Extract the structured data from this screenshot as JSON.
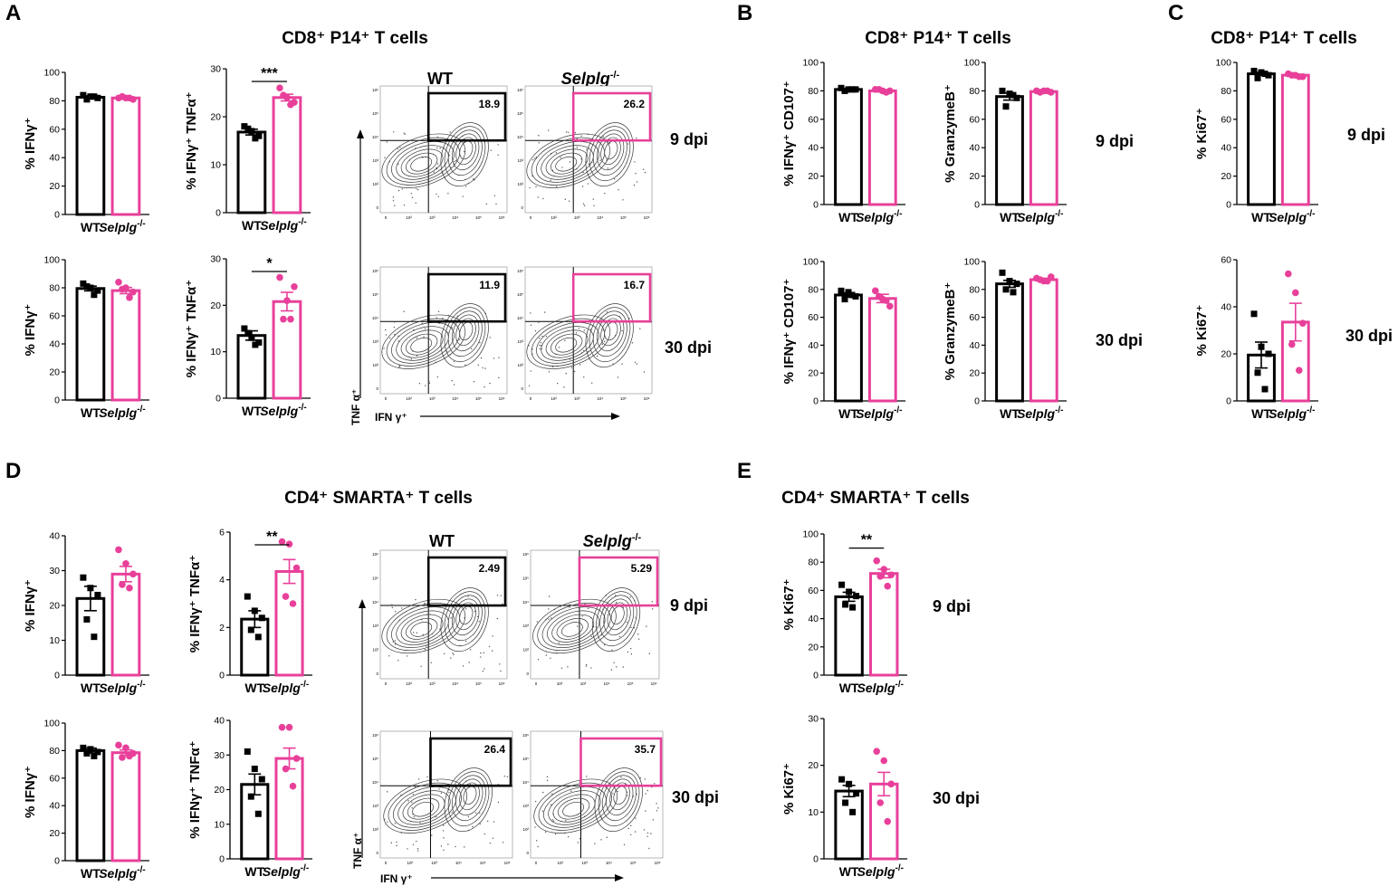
{
  "colors": {
    "wt": "#000000",
    "ko": "#e8409a",
    "contour": "#3a3a3a"
  },
  "panel_labels": {
    "a": "A",
    "b": "B",
    "c": "C",
    "d": "D",
    "e": "E"
  },
  "panel_titles": {
    "a": "CD8⁺ P14⁺ T cells",
    "b": "CD8⁺ P14⁺ T cells",
    "c": "CD8⁺ P14⁺ T cells",
    "d": "CD4⁺ SMARTA⁺ T cells",
    "e": "CD4⁺ SMARTA⁺ T cells"
  },
  "timepoints": {
    "day9": "9 dpi",
    "day30": "30 dpi"
  },
  "groups": {
    "wt": "WT",
    "ko": "Selplg",
    "ko_sup": "-/-"
  },
  "flow_headers": {
    "wt": "WT",
    "ko": "Selplg",
    "ko_sup": "-/-"
  },
  "flow_axes": {
    "x": "IFN γ⁺",
    "y": "TNF α⁺"
  },
  "flow_tick_labels": [
    "0",
    "10²",
    "10³",
    "10⁴",
    "10⁵",
    "10⁶"
  ],
  "chart_data": [
    {
      "id": "A1",
      "type": "bar",
      "panel": "A",
      "timepoint": "9 dpi",
      "ylabel": "% IFNγ⁺",
      "categories": [
        "WT",
        "Selplg-/-"
      ],
      "ylim": [
        0,
        100
      ],
      "yticks": [
        0,
        20,
        40,
        60,
        80,
        100
      ],
      "values": [
        82.5,
        82
      ],
      "sem": [
        1,
        0.7
      ],
      "points": [
        [
          84,
          83,
          82,
          81,
          83
        ],
        [
          82,
          82,
          81,
          83,
          82
        ]
      ],
      "significance": ""
    },
    {
      "id": "A2",
      "type": "bar",
      "panel": "A",
      "timepoint": "9 dpi",
      "ylabel": "% IFNγ⁺ TNFα⁺",
      "categories": [
        "WT",
        "Selplg-/-"
      ],
      "ylim": [
        0,
        30
      ],
      "yticks": [
        0,
        10,
        20,
        30
      ],
      "values": [
        16.8,
        24
      ],
      "sem": [
        0.6,
        0.7
      ],
      "points": [
        [
          18,
          17,
          16,
          17.5,
          15.5
        ],
        [
          26,
          24,
          23,
          24.5,
          22.5
        ]
      ],
      "significance": "***"
    },
    {
      "id": "A3",
      "type": "bar",
      "panel": "A",
      "timepoint": "30 dpi",
      "ylabel": "% IFNγ⁺",
      "categories": [
        "WT",
        "Selplg-/-"
      ],
      "ylim": [
        0,
        100
      ],
      "yticks": [
        0,
        20,
        40,
        60,
        80,
        100
      ],
      "values": [
        79.5,
        78
      ],
      "sem": [
        1.7,
        2.2
      ],
      "points": [
        [
          83,
          80,
          78,
          81,
          75
        ],
        [
          84,
          80,
          77,
          79,
          73
        ]
      ],
      "significance": ""
    },
    {
      "id": "A4",
      "type": "bar",
      "panel": "A",
      "timepoint": "30 dpi",
      "ylabel": "% IFNγ⁺ TNFα⁺",
      "categories": [
        "WT",
        "Selplg-/-"
      ],
      "ylim": [
        0,
        30
      ],
      "yticks": [
        0,
        10,
        20,
        30
      ],
      "values": [
        13.5,
        20.8
      ],
      "sem": [
        1,
        2
      ],
      "points": [
        [
          15,
          13,
          12,
          14,
          11.5
        ],
        [
          26,
          21,
          24,
          17,
          17
        ]
      ],
      "significance": "*"
    },
    {
      "id": "B1",
      "type": "bar",
      "panel": "B",
      "timepoint": "9 dpi",
      "ylabel": "% IFNγ⁺ CD107⁺",
      "categories": [
        "WT",
        "Selplg-/-"
      ],
      "ylim": [
        0,
        100
      ],
      "yticks": [
        0,
        20,
        40,
        60,
        80,
        100
      ],
      "values": [
        81,
        80
      ],
      "sem": [
        0.5,
        0.5
      ],
      "points": [
        [
          82,
          81,
          81,
          80,
          81
        ],
        [
          81,
          80,
          80,
          81,
          79
        ]
      ],
      "significance": ""
    },
    {
      "id": "B2",
      "type": "bar",
      "panel": "B",
      "timepoint": "9 dpi",
      "ylabel": "% GranzymeB⁺",
      "categories": [
        "WT",
        "Selplg-/-"
      ],
      "ylim": [
        0,
        100
      ],
      "yticks": [
        0,
        20,
        40,
        60,
        80,
        100
      ],
      "values": [
        76,
        79.5
      ],
      "sem": [
        2.5,
        0.5
      ],
      "points": [
        [
          80,
          78,
          75,
          69,
          77
        ],
        [
          80,
          80,
          79,
          79,
          80
        ]
      ],
      "significance": ""
    },
    {
      "id": "B3",
      "type": "bar",
      "panel": "B",
      "timepoint": "30 dpi",
      "ylabel": "% IFNγ⁺ CD107⁺",
      "categories": [
        "WT",
        "Selplg-/-"
      ],
      "ylim": [
        0,
        100
      ],
      "yticks": [
        0,
        20,
        40,
        60,
        80,
        100
      ],
      "values": [
        76,
        73.5
      ],
      "sem": [
        1.5,
        3
      ],
      "points": [
        [
          79,
          78,
          75,
          73,
          76
        ],
        [
          79,
          73,
          68,
          75,
          72
        ]
      ],
      "significance": ""
    },
    {
      "id": "B4",
      "type": "bar",
      "panel": "B",
      "timepoint": "30 dpi",
      "ylabel": "% GranzymeB⁺",
      "categories": [
        "WT",
        "Selplg-/-"
      ],
      "ylim": [
        0,
        100
      ],
      "yticks": [
        0,
        20,
        40,
        60,
        80,
        100
      ],
      "values": [
        84,
        87
      ],
      "sem": [
        2.5,
        1
      ],
      "points": [
        [
          92,
          86,
          84,
          80,
          78
        ],
        [
          88,
          86,
          89,
          87,
          86
        ]
      ],
      "significance": ""
    },
    {
      "id": "C1",
      "type": "bar",
      "panel": "C",
      "timepoint": "9 dpi",
      "ylabel": "% Ki67⁺",
      "categories": [
        "WT",
        "Selplg-/-"
      ],
      "ylim": [
        0,
        100
      ],
      "yticks": [
        0,
        20,
        40,
        60,
        80,
        100
      ],
      "values": [
        92,
        91
      ],
      "sem": [
        1,
        0.5
      ],
      "points": [
        [
          94,
          93,
          91,
          89,
          92
        ],
        [
          92,
          91,
          90,
          91,
          90
        ]
      ],
      "significance": ""
    },
    {
      "id": "C2",
      "type": "bar",
      "panel": "C",
      "timepoint": "30 dpi",
      "ylabel": "% Ki67⁺",
      "categories": [
        "WT",
        "Selplg-/-"
      ],
      "ylim": [
        0,
        60
      ],
      "yticks": [
        0,
        20,
        40,
        60
      ],
      "values": [
        19.5,
        33.5
      ],
      "sem": [
        5.5,
        8
      ],
      "points": [
        [
          37,
          23,
          20,
          12,
          5
        ],
        [
          54,
          46,
          33,
          24,
          13
        ]
      ],
      "significance": ""
    },
    {
      "id": "D1",
      "type": "bar",
      "panel": "D",
      "timepoint": "9 dpi",
      "ylabel": "% IFNγ⁺",
      "categories": [
        "WT",
        "Selplg-/-"
      ],
      "ylim": [
        0,
        40
      ],
      "yticks": [
        0,
        10,
        20,
        30,
        40
      ],
      "values": [
        22,
        29
      ],
      "sem": [
        3.5,
        2.2
      ],
      "points": [
        [
          28,
          25,
          23,
          16,
          11
        ],
        [
          36,
          32,
          29,
          26,
          25
        ]
      ],
      "significance": ""
    },
    {
      "id": "D2",
      "type": "bar",
      "panel": "D",
      "timepoint": "9 dpi",
      "ylabel": "% IFNγ⁺ TNFα⁺",
      "categories": [
        "WT",
        "Selplg-/-"
      ],
      "ylim": [
        0,
        6
      ],
      "yticks": [
        0,
        2,
        4,
        6
      ],
      "values": [
        2.35,
        4.35
      ],
      "sem": [
        0.35,
        0.5
      ],
      "points": [
        [
          3.3,
          2.7,
          2.4,
          1.9,
          1.6
        ],
        [
          5.6,
          5.5,
          4.5,
          3.3,
          3.0
        ]
      ],
      "significance": "**"
    },
    {
      "id": "D3",
      "type": "bar",
      "panel": "D",
      "timepoint": "30 dpi",
      "ylabel": "% IFNγ⁺",
      "categories": [
        "WT",
        "Selplg-/-"
      ],
      "ylim": [
        0,
        100
      ],
      "yticks": [
        0,
        20,
        40,
        60,
        80,
        100
      ],
      "values": [
        80,
        78.5
      ],
      "sem": [
        1.8,
        2
      ],
      "points": [
        [
          82,
          81,
          79,
          78,
          76
        ],
        [
          84,
          82,
          78,
          75,
          76
        ]
      ],
      "significance": ""
    },
    {
      "id": "D4",
      "type": "bar",
      "panel": "D",
      "timepoint": "30 dpi",
      "ylabel": "% IFNγ⁺ TNFα⁺",
      "categories": [
        "WT",
        "Selplg-/-"
      ],
      "ylim": [
        0,
        40
      ],
      "yticks": [
        0,
        10,
        20,
        30,
        40
      ],
      "values": [
        21.5,
        29
      ],
      "sem": [
        3,
        3
      ],
      "points": [
        [
          31,
          26,
          23,
          18,
          13
        ],
        [
          38,
          38,
          29,
          26,
          21
        ]
      ],
      "significance": ""
    },
    {
      "id": "E1",
      "type": "bar",
      "panel": "E",
      "timepoint": "9 dpi",
      "ylabel": "% Ki67⁺",
      "categories": [
        "WT",
        "Selplg-/-"
      ],
      "ylim": [
        0,
        100
      ],
      "yticks": [
        0,
        20,
        40,
        60,
        80,
        100
      ],
      "values": [
        55.5,
        72
      ],
      "sem": [
        3.2,
        3
      ],
      "points": [
        [
          64,
          59,
          56,
          50,
          48
        ],
        [
          81,
          75,
          71,
          70,
          63
        ]
      ],
      "significance": "**"
    },
    {
      "id": "E2",
      "type": "bar",
      "panel": "E",
      "timepoint": "30 dpi",
      "ylabel": "% Ki67⁺",
      "categories": [
        "WT",
        "Selplg-/-"
      ],
      "ylim": [
        0,
        30
      ],
      "yticks": [
        0,
        10,
        20,
        30
      ],
      "values": [
        14.5,
        16
      ],
      "sem": [
        1.2,
        2.5
      ],
      "points": [
        [
          17,
          16,
          14,
          12,
          10
        ],
        [
          23,
          21,
          16,
          12,
          8
        ]
      ],
      "significance": ""
    },
    {
      "id": "F1",
      "type": "flow",
      "panel": "A",
      "timepoint": "9 dpi",
      "quadrant_label": "IFNγ⁺ TNFα⁺",
      "wt_percent": "18.9",
      "ko_percent": "26.2"
    },
    {
      "id": "F2",
      "type": "flow",
      "panel": "A",
      "timepoint": "30 dpi",
      "quadrant_label": "IFNγ⁺ TNFα⁺",
      "wt_percent": "11.9",
      "ko_percent": "16.7"
    },
    {
      "id": "F3",
      "type": "flow",
      "panel": "D",
      "timepoint": "9 dpi",
      "quadrant_label": "IFNγ⁺ TNFα⁺",
      "wt_percent": "2.49",
      "ko_percent": "5.29"
    },
    {
      "id": "F4",
      "type": "flow",
      "panel": "D",
      "timepoint": "30 dpi",
      "quadrant_label": "IFNγ⁺ TNFα⁺",
      "wt_percent": "26.4",
      "ko_percent": "35.7"
    }
  ]
}
